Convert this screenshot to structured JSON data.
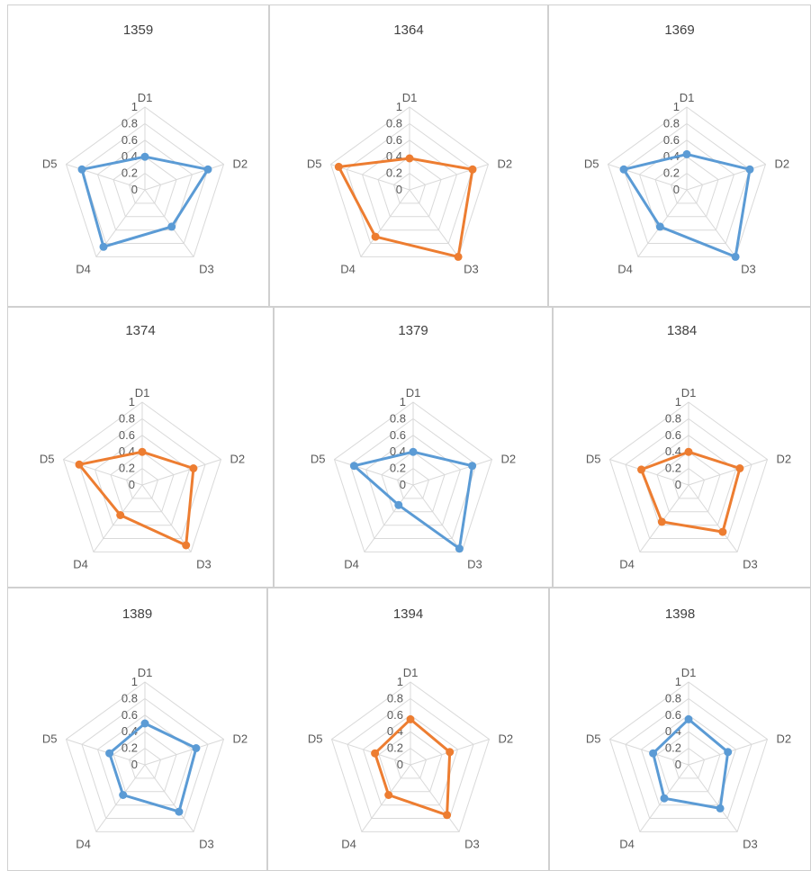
{
  "colors": {
    "blue": "#5b9bd5",
    "orange": "#ed7d31",
    "grid": "#d9d9d9"
  },
  "chart_data": [
    {
      "type": "radar",
      "title": "1359",
      "axes": [
        "D1",
        "D2",
        "D3",
        "D4",
        "D5"
      ],
      "rlim": [
        0,
        1
      ],
      "ticks": [
        "0",
        "0.2",
        "0.4",
        "0.6",
        "0.8",
        "1"
      ],
      "color": "blue",
      "values": [
        0.4,
        0.8,
        0.55,
        0.85,
        0.8
      ]
    },
    {
      "type": "radar",
      "title": "1364",
      "axes": [
        "D1",
        "D2",
        "D3",
        "D4",
        "D5"
      ],
      "rlim": [
        0,
        1
      ],
      "ticks": [
        "0",
        "0.2",
        "0.4",
        "0.6",
        "0.8",
        "1"
      ],
      "color": "orange",
      "values": [
        0.38,
        0.8,
        1.0,
        0.7,
        0.9
      ]
    },
    {
      "type": "radar",
      "title": "1369",
      "axes": [
        "D1",
        "D2",
        "D3",
        "D4",
        "D5"
      ],
      "rlim": [
        0,
        1
      ],
      "ticks": [
        "0",
        "0.2",
        "0.4",
        "0.6",
        "0.8",
        "1"
      ],
      "color": "blue",
      "values": [
        0.43,
        0.8,
        1.0,
        0.55,
        0.8
      ]
    },
    {
      "type": "radar",
      "title": "1374",
      "axes": [
        "D1",
        "D2",
        "D3",
        "D4",
        "D5"
      ],
      "rlim": [
        0,
        1
      ],
      "ticks": [
        "0",
        "0.2",
        "0.4",
        "0.6",
        "0.8",
        "1"
      ],
      "color": "orange",
      "values": [
        0.4,
        0.65,
        0.9,
        0.45,
        0.8
      ]
    },
    {
      "type": "radar",
      "title": "1379",
      "axes": [
        "D1",
        "D2",
        "D3",
        "D4",
        "D5"
      ],
      "rlim": [
        0,
        1
      ],
      "ticks": [
        "0",
        "0.2",
        "0.4",
        "0.6",
        "0.8",
        "1"
      ],
      "color": "blue",
      "values": [
        0.4,
        0.75,
        0.95,
        0.3,
        0.75
      ]
    },
    {
      "type": "radar",
      "title": "1384",
      "axes": [
        "D1",
        "D2",
        "D3",
        "D4",
        "D5"
      ],
      "rlim": [
        0,
        1
      ],
      "ticks": [
        "0",
        "0.2",
        "0.4",
        "0.6",
        "0.8",
        "1"
      ],
      "color": "orange",
      "values": [
        0.4,
        0.65,
        0.7,
        0.55,
        0.6
      ]
    },
    {
      "type": "radar",
      "title": "1389",
      "axes": [
        "D1",
        "D2",
        "D3",
        "D4",
        "D5"
      ],
      "rlim": [
        0,
        1
      ],
      "ticks": [
        "0",
        "0.2",
        "0.4",
        "0.6",
        "0.8",
        "1"
      ],
      "color": "blue",
      "values": [
        0.5,
        0.65,
        0.7,
        0.45,
        0.45
      ]
    },
    {
      "type": "radar",
      "title": "1394",
      "axes": [
        "D1",
        "D2",
        "D3",
        "D4",
        "D5"
      ],
      "rlim": [
        0,
        1
      ],
      "ticks": [
        "0",
        "0.2",
        "0.4",
        "0.6",
        "0.8",
        "1"
      ],
      "color": "orange",
      "values": [
        0.55,
        0.5,
        0.75,
        0.45,
        0.45
      ]
    },
    {
      "type": "radar",
      "title": "1398",
      "axes": [
        "D1",
        "D2",
        "D3",
        "D4",
        "D5"
      ],
      "rlim": [
        0,
        1
      ],
      "ticks": [
        "0",
        "0.2",
        "0.4",
        "0.6",
        "0.8",
        "1"
      ],
      "color": "blue",
      "values": [
        0.55,
        0.5,
        0.65,
        0.5,
        0.45
      ]
    }
  ]
}
